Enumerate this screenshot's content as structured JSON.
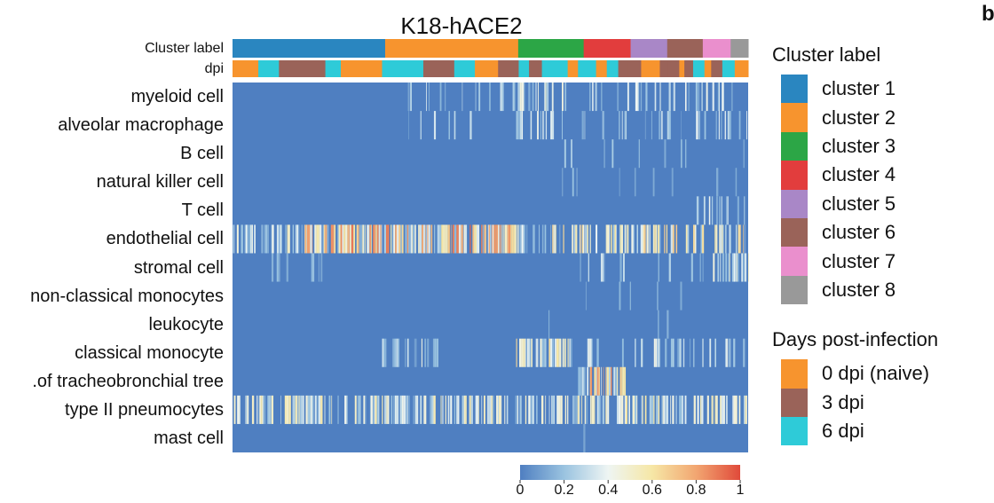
{
  "corner_letter": "b",
  "chart_data": {
    "type": "heatmap",
    "title": "K18-hACE2",
    "rows": [
      "myeloid cell",
      "alveolar macrophage",
      "B cell",
      "natural killer cell",
      "T cell",
      "endothelial cell",
      "stromal cell",
      "non-classical monocytes",
      "leukocyte",
      "classical monocyte",
      ".of tracheobronchial tree",
      "type II pneumocytes",
      "mast cell"
    ],
    "annotation_bars": [
      {
        "label": "Cluster label",
        "legend": "Cluster label"
      },
      {
        "label": "dpi",
        "legend": "Days post-infection"
      }
    ],
    "clusters": [
      {
        "name": "cluster 1",
        "color": "#2a86c0",
        "fraction": 0.296
      },
      {
        "name": "cluster 2",
        "color": "#f7942e",
        "fraction": 0.258
      },
      {
        "name": "cluster 3",
        "color": "#2ca646",
        "fraction": 0.127
      },
      {
        "name": "cluster 4",
        "color": "#e23d3d",
        "fraction": 0.091
      },
      {
        "name": "cluster 5",
        "color": "#a987c7",
        "fraction": 0.071
      },
      {
        "name": "cluster 6",
        "color": "#9a6359",
        "fraction": 0.069
      },
      {
        "name": "cluster 7",
        "color": "#ea8fcd",
        "fraction": 0.054
      },
      {
        "name": "cluster 8",
        "color": "#999999",
        "fraction": 0.034
      }
    ],
    "days_post_infection": [
      {
        "name": "0 dpi (naive)",
        "color": "#f7942e"
      },
      {
        "name": "3 dpi",
        "color": "#9a6359"
      },
      {
        "name": "6 dpi",
        "color": "#2ecbd8"
      }
    ],
    "colorbar": {
      "range": [
        0,
        1
      ],
      "ticks": [
        "0",
        "0.2",
        "0.4",
        "0.6",
        "0.8",
        "1"
      ],
      "colors": [
        "#4f7fc1",
        "#9ac3e0",
        "#eef5f3",
        "#f6e7a6",
        "#f2a671",
        "#e04a3a"
      ]
    }
  }
}
